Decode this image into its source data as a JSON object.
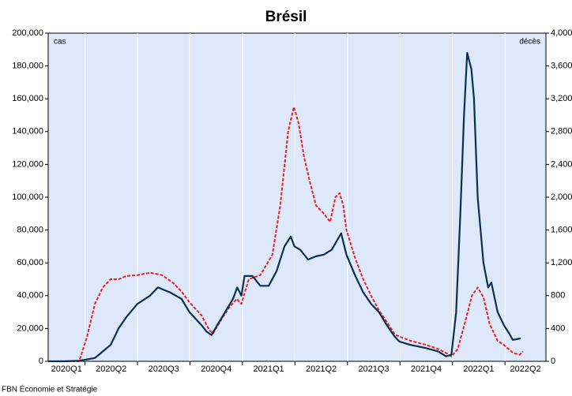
{
  "chart_data": {
    "type": "line",
    "title": "Brésil",
    "source": "FBN Économie et Stratégie",
    "ylabel": "cas",
    "y2label": "décès",
    "categories": [
      "2020Q1",
      "2020Q2",
      "2020Q3",
      "2020Q4",
      "2021Q1",
      "2021Q2",
      "2021Q3",
      "2021Q4",
      "2022Q1",
      "2022Q2"
    ],
    "xlim": [
      0.3,
      9.78
    ],
    "ylim": [
      0,
      200000
    ],
    "yticks": [
      0,
      {
        "value": 20000,
        "label": "20,000"
      },
      {
        "value": 40000,
        "label": "40,000"
      },
      {
        "value": 60000,
        "label": "60,000"
      },
      {
        "value": 80000,
        "label": "80,000"
      },
      {
        "value": 100000,
        "label": "100,000"
      },
      {
        "value": 120000,
        "label": "120,000"
      },
      {
        "value": 140000,
        "label": "140,000"
      },
      {
        "value": 160000,
        "label": "160,000"
      },
      {
        "value": 180000,
        "label": "180,000"
      },
      {
        "value": 200000,
        "label": "200,000"
      }
    ],
    "y2lim": [
      0,
      4000
    ],
    "y2ticks": [
      0,
      400,
      800,
      {
        "value": 1200,
        "label": "1,200"
      },
      {
        "value": 1600,
        "label": "1,600"
      },
      {
        "value": 2000,
        "label": "2,000"
      },
      {
        "value": 2400,
        "label": "2,400"
      },
      {
        "value": 2800,
        "label": "2,800"
      },
      {
        "value": 3200,
        "label": "3,200"
      },
      {
        "value": 3600,
        "label": "3,600"
      },
      {
        "value": 4000,
        "label": "4,000"
      }
    ],
    "series": [
      {
        "color": "#0d2f4f",
        "dash": false,
        "x": [
          0.3,
          0.59,
          0.89,
          1.19,
          1.49,
          1.64,
          1.79,
          2.0,
          2.24,
          2.39,
          2.62,
          2.84,
          2.99,
          3.22,
          3.32,
          3.41,
          3.52,
          3.67,
          3.82,
          3.9,
          3.98,
          4.04,
          4.19,
          4.34,
          4.5,
          4.65,
          4.8,
          4.92,
          4.99,
          5.1,
          5.25,
          5.4,
          5.55,
          5.7,
          5.88,
          5.98,
          6.15,
          6.3,
          6.45,
          6.6,
          6.75,
          6.9,
          6.99,
          7.2,
          7.5,
          7.73,
          7.88,
          7.98,
          8.07,
          8.15,
          8.22,
          8.28,
          8.36,
          8.41,
          8.48,
          8.59,
          8.68,
          8.74,
          8.86,
          8.98,
          9.08,
          9.15,
          9.3
        ],
        "values": [
          0,
          0,
          300,
          2000,
          10000,
          20000,
          27000,
          35000,
          40000,
          45000,
          42000,
          38000,
          30000,
          22000,
          18000,
          16000,
          22000,
          30000,
          38000,
          45000,
          40000,
          52000,
          52000,
          46000,
          46000,
          55000,
          70000,
          76000,
          70000,
          68000,
          62000,
          64000,
          65000,
          68000,
          78000,
          65000,
          52000,
          42000,
          35000,
          30000,
          22000,
          15000,
          12000,
          10000,
          8000,
          6000,
          3000,
          4000,
          30000,
          90000,
          150000,
          188000,
          178000,
          160000,
          100000,
          60000,
          45000,
          48000,
          30000,
          22000,
          17000,
          13000,
          14000
        ]
      },
      {
        "color": "#e8201e",
        "dash": true,
        "axis": "y2",
        "x": [
          0.3,
          0.89,
          1.04,
          1.19,
          1.34,
          1.49,
          1.64,
          1.79,
          2.0,
          2.24,
          2.47,
          2.69,
          2.84,
          2.99,
          3.22,
          3.37,
          3.44,
          3.59,
          3.74,
          3.89,
          3.98,
          4.12,
          4.34,
          4.57,
          4.72,
          4.87,
          4.98,
          5.07,
          5.17,
          5.28,
          5.4,
          5.55,
          5.67,
          5.77,
          5.85,
          5.92,
          5.98,
          6.15,
          6.3,
          6.45,
          6.6,
          6.75,
          6.9,
          6.99,
          7.2,
          7.5,
          7.73,
          7.88,
          7.98,
          8.1,
          8.25,
          8.37,
          8.48,
          8.59,
          8.71,
          8.86,
          8.98,
          9.16,
          9.28,
          9.34
        ],
        "values": [
          0,
          0,
          300,
          700,
          900,
          1000,
          1000,
          1040,
          1050,
          1080,
          1050,
          950,
          850,
          720,
          560,
          380,
          340,
          500,
          650,
          760,
          700,
          1000,
          1050,
          1300,
          1900,
          2800,
          3100,
          2900,
          2500,
          2200,
          1900,
          1800,
          1700,
          2000,
          2050,
          1900,
          1600,
          1250,
          1000,
          800,
          620,
          480,
          330,
          300,
          250,
          200,
          150,
          100,
          60,
          150,
          500,
          800,
          900,
          780,
          450,
          250,
          200,
          100,
          80,
          120
        ]
      }
    ]
  }
}
